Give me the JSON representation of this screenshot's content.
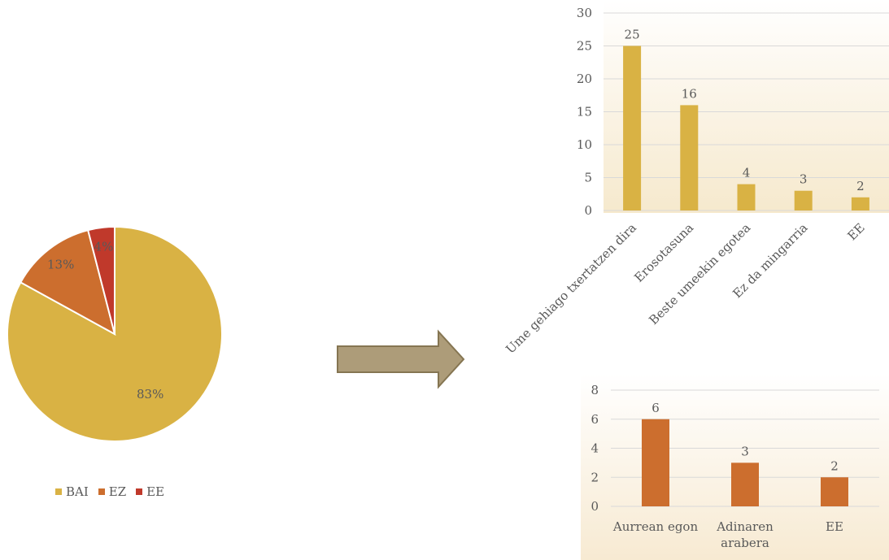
{
  "colors": {
    "bai": "#D9B244",
    "ez": "#CC6E2E",
    "ee": "#C0392B",
    "bar_top": "#D9B244",
    "bar_bottom": "#CC6E2E",
    "arrow_fill": "#AD9C79",
    "arrow_stroke": "#857552",
    "grid": "#D9D9D9",
    "text": "#595959"
  },
  "pie_legend": {
    "items": [
      {
        "label": "BAI",
        "color": "#D9B244"
      },
      {
        "label": "EZ",
        "color": "#CC6E2E"
      },
      {
        "label": "EE",
        "color": "#C0392B"
      }
    ]
  },
  "arrow": {
    "icon": "right-arrow-icon"
  },
  "chart_data": [
    {
      "type": "pie",
      "title": "",
      "categories": [
        "BAI",
        "EZ",
        "EE"
      ],
      "values": [
        83,
        13,
        4
      ],
      "labels": [
        "83%",
        "13%",
        "4%"
      ],
      "legend": "bottom"
    },
    {
      "type": "bar",
      "title": "",
      "categories": [
        "Ume gehiago txertatzen dira",
        "Erosotasuna",
        "Beste umeekin egotea",
        "Ez da mingarria",
        "EE"
      ],
      "values": [
        25,
        16,
        4,
        3,
        2
      ],
      "ylim": [
        0,
        30
      ],
      "yticks": [
        0,
        5,
        10,
        15,
        20,
        25,
        30
      ],
      "grid": true
    },
    {
      "type": "bar",
      "title": "",
      "categories": [
        "Aurrean egon",
        "Adinaren arabera",
        "EE"
      ],
      "values": [
        6,
        3,
        2
      ],
      "ylim": [
        0,
        8
      ],
      "yticks": [
        0,
        2,
        4,
        6,
        8
      ],
      "grid": true
    }
  ]
}
